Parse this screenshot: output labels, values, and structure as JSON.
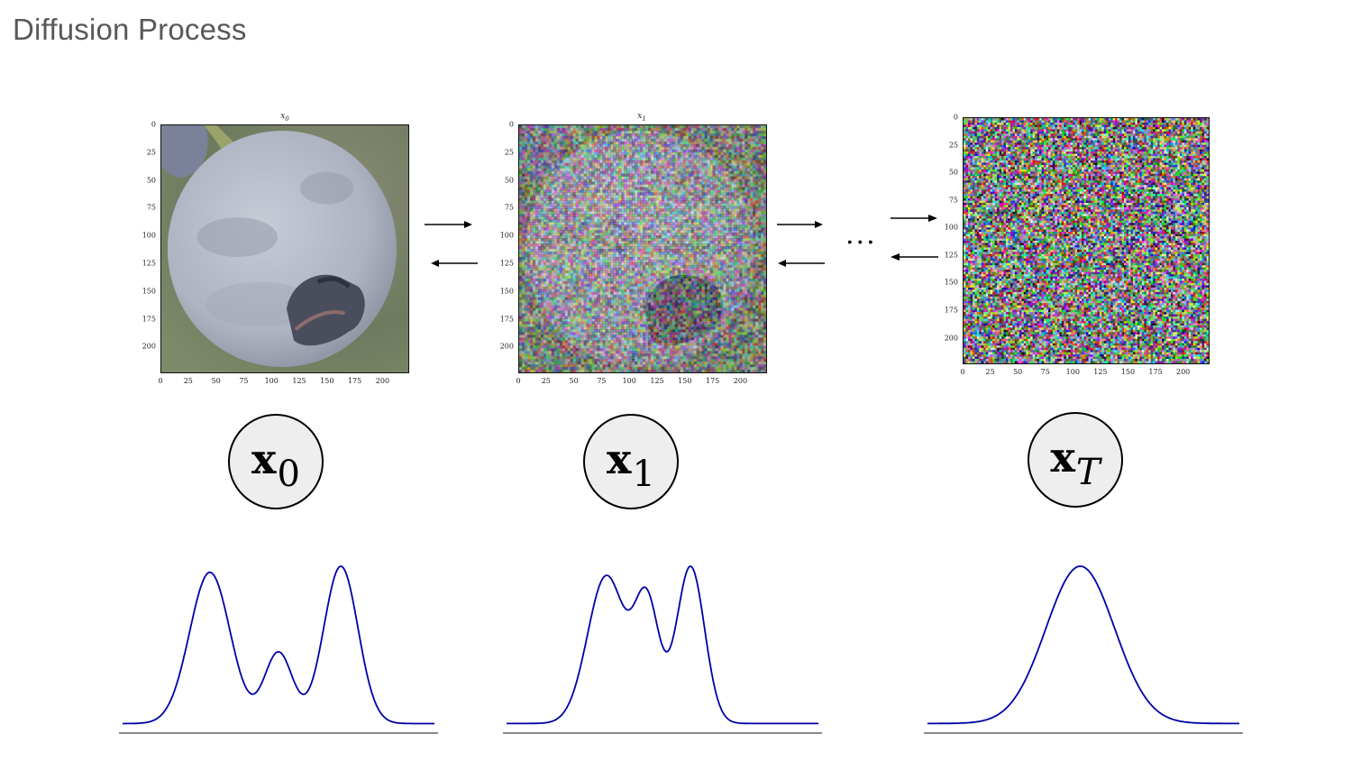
{
  "slide": {
    "title": "Diffusion Process"
  },
  "colors": {
    "curve": "#0000aa",
    "baseline": "#444444",
    "node_fill": "#eeeeee",
    "arrow": "#000000",
    "title_text": "#595959"
  },
  "panels": [
    {
      "id": "x0",
      "title_symbol": "x",
      "title_sub": "0",
      "yticks": [
        "0",
        "25",
        "50",
        "75",
        "100",
        "125",
        "150",
        "175",
        "200"
      ],
      "xticks": [
        "0",
        "25",
        "50",
        "75",
        "100",
        "125",
        "150",
        "175",
        "200"
      ],
      "content": "photo of a blueberry",
      "noise_level": 0
    },
    {
      "id": "x1",
      "title_symbol": "x",
      "title_sub": "1",
      "yticks": [
        "0",
        "25",
        "50",
        "75",
        "100",
        "125",
        "150",
        "175",
        "200"
      ],
      "xticks": [
        "0",
        "25",
        "50",
        "75",
        "100",
        "125",
        "150",
        "175",
        "200"
      ],
      "content": "noisy photo of a blueberry",
      "noise_level": 0.45
    },
    {
      "id": "xT",
      "title_symbol": "",
      "title_sub": "",
      "yticks": [
        "0",
        "25",
        "50",
        "75",
        "100",
        "125",
        "150",
        "175",
        "200"
      ],
      "xticks": [
        "0",
        "25",
        "50",
        "75",
        "100",
        "125",
        "150",
        "175",
        "200"
      ],
      "content": "pure color noise",
      "noise_level": 1
    }
  ],
  "transitions": {
    "ellipsis": "..."
  },
  "nodes": [
    {
      "symbol": "x",
      "subscript": "0",
      "sub_italic": false
    },
    {
      "symbol": "x",
      "subscript": "1",
      "sub_italic": false
    },
    {
      "symbol": "x",
      "subscript": "T",
      "sub_italic": true
    }
  ],
  "distributions": [
    {
      "name": "trimodal",
      "peaks": [
        [
          0.28,
          1.0,
          0.065
        ],
        [
          0.5,
          0.47,
          0.045
        ],
        [
          0.7,
          1.04,
          0.055
        ]
      ],
      "floor": 0.015
    },
    {
      "name": "trimodal-blurred",
      "peaks": [
        [
          0.32,
          0.94,
          0.06
        ],
        [
          0.45,
          0.76,
          0.04
        ],
        [
          0.59,
          1.0,
          0.045
        ]
      ],
      "floor": 0.015
    },
    {
      "name": "gaussian",
      "peaks": [
        [
          0.49,
          1.0,
          0.11
        ]
      ],
      "floor": 0.015
    }
  ]
}
